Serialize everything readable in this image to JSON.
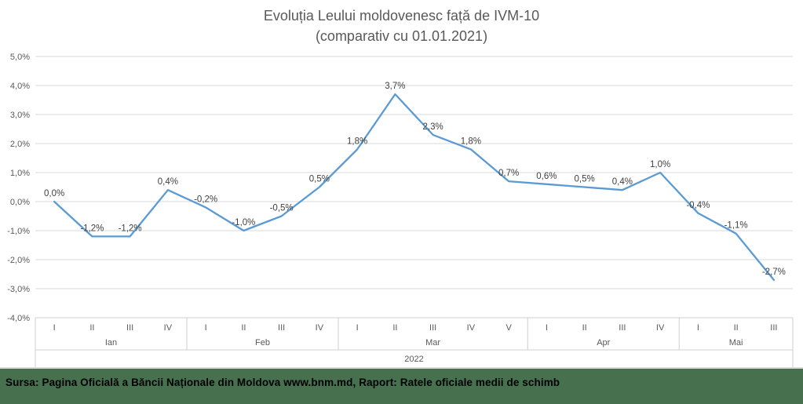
{
  "chart_data": {
    "type": "line",
    "title": "Evoluția Leului moldovenesc față de IVM-10",
    "subtitle": "(comparativ cu 01.01.2021)",
    "xlabel": "",
    "ylabel": "",
    "ylim": [
      -4.0,
      5.0
    ],
    "ytick_step": 1.0,
    "ytick_labels": [
      "5,0%",
      "4,0%",
      "3,0%",
      "2,0%",
      "1,0%",
      "0,0%",
      "-1,0%",
      "-2,0%",
      "-3,0%",
      "-4,0%"
    ],
    "grid": true,
    "legend": false,
    "year_label": "2022",
    "line_color": "#5B9BD5",
    "grid_color": "#D9D9D9",
    "table_border_color": "#CFCFCF",
    "axis_text_color": "#595959",
    "label_color": "#404040",
    "groups": [
      {
        "month": "Ian",
        "weeks": [
          "I",
          "II",
          "III",
          "IV"
        ],
        "values": [
          0.0,
          -1.2,
          -1.2,
          0.4
        ],
        "labels": [
          "0,0%",
          "-1,2%",
          "-1,2%",
          "0,4%"
        ]
      },
      {
        "month": "Feb",
        "weeks": [
          "I",
          "II",
          "III",
          "IV"
        ],
        "values": [
          -0.2,
          -1.0,
          -0.5,
          0.5
        ],
        "labels": [
          "-0,2%",
          "-1,0%",
          "-0,5%",
          "0,5%"
        ]
      },
      {
        "month": "Mar",
        "weeks": [
          "I",
          "II",
          "III",
          "IV",
          "V"
        ],
        "values": [
          1.8,
          3.7,
          2.3,
          1.8,
          0.7
        ],
        "labels": [
          "1,8%",
          "3,7%",
          "2,3%",
          "1,8%",
          "0,7%"
        ]
      },
      {
        "month": "Apr",
        "weeks": [
          "I",
          "II",
          "III",
          "IV"
        ],
        "values": [
          0.6,
          0.5,
          0.4,
          1.0
        ],
        "labels": [
          "0,6%",
          "0,5%",
          "0,4%",
          "1,0%"
        ]
      },
      {
        "month": "Mai",
        "weeks": [
          "I",
          "II",
          "III"
        ],
        "values": [
          -0.4,
          -1.1,
          -2.7
        ],
        "labels": [
          "-0,4%",
          "-1,1%",
          "-2,7%"
        ]
      }
    ]
  },
  "footer": {
    "source_text": "Sursa: Pagina Oficială a Băncii Naționale din Moldova www.bnm.md, Raport: Ratele oficiale medii de schimb",
    "background_color": "#47704F"
  }
}
